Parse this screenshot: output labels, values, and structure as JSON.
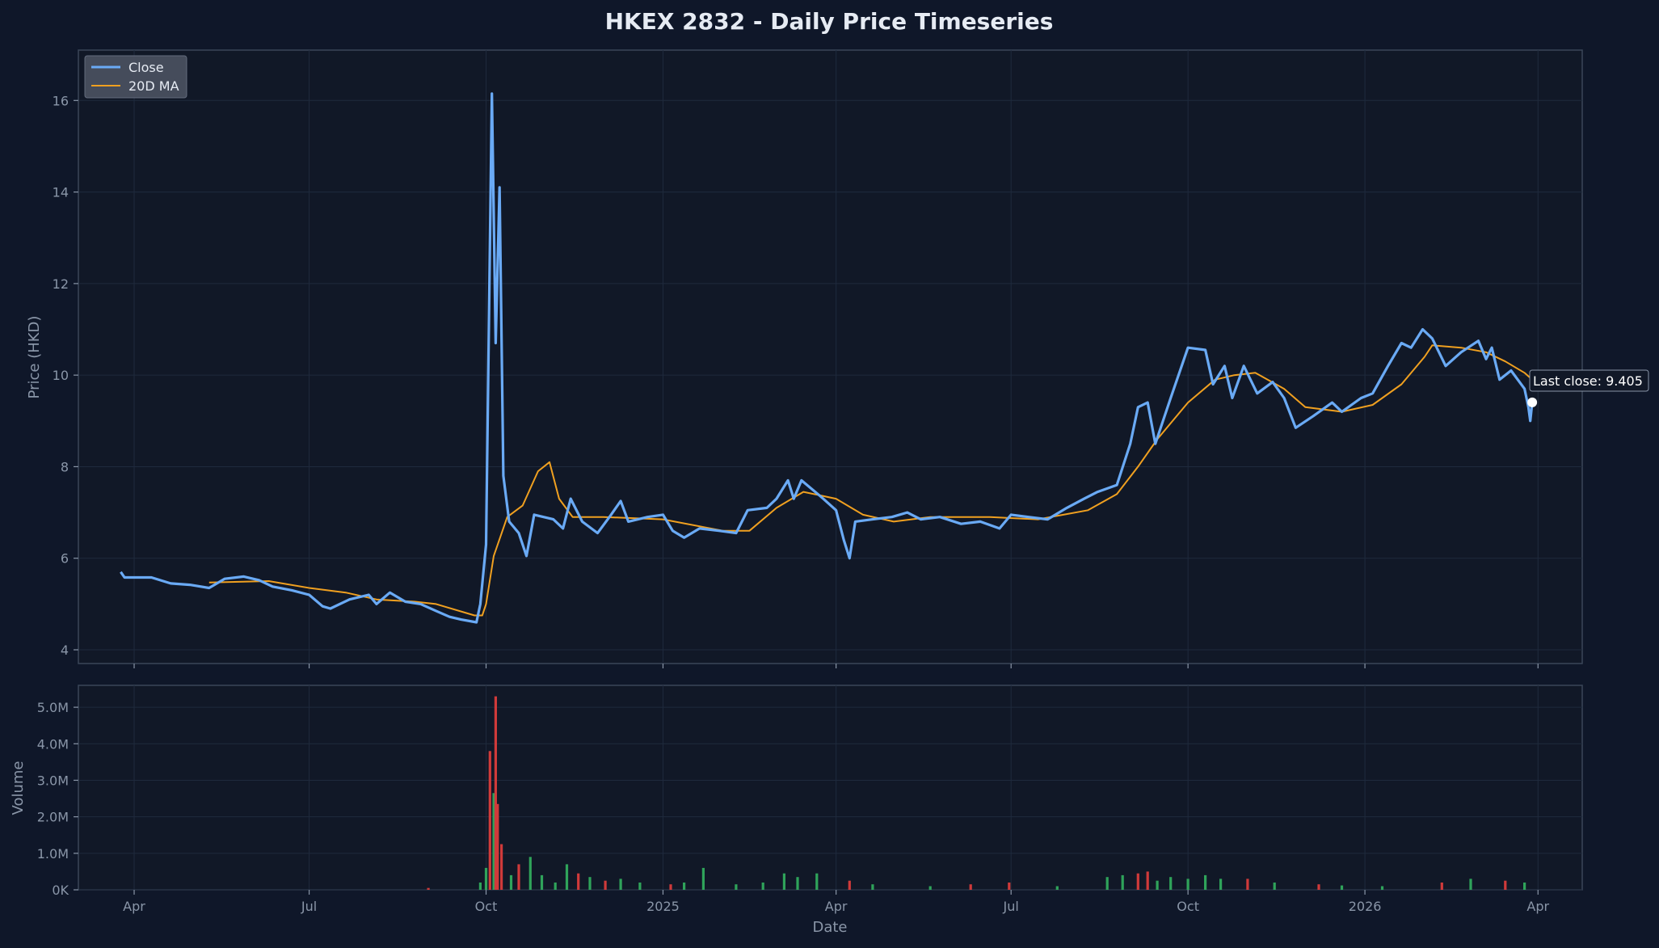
{
  "chart_data": {
    "type": "line",
    "title": "HKEX 2832 - Daily Price Timeseries",
    "xlabel": "Date",
    "ylabel": "Price (HKD)",
    "ylabel_volume": "Volume",
    "xlim": [
      "2024-03-03",
      "2026-04-24"
    ],
    "ylim": [
      3.7,
      17.1
    ],
    "volume_ylim": [
      0,
      5.6
    ],
    "volume_unit": "M",
    "grid": true,
    "legend_position": "top-left",
    "colors": {
      "close": "#6aaaf5",
      "ma": "#f0a020",
      "vol_up": "#2fa35a",
      "vol_down": "#d03a3a",
      "last_marker": "#ffffff"
    },
    "x_ticks": [
      {
        "date": "2024-04-01",
        "label": "Apr"
      },
      {
        "date": "2024-07-01",
        "label": "Jul"
      },
      {
        "date": "2024-10-01",
        "label": "Oct"
      },
      {
        "date": "2025-01-01",
        "label": "2025"
      },
      {
        "date": "2025-04-01",
        "label": "Apr"
      },
      {
        "date": "2025-07-01",
        "label": "Jul"
      },
      {
        "date": "2025-10-01",
        "label": "Oct"
      },
      {
        "date": "2026-01-01",
        "label": "2026"
      },
      {
        "date": "2026-04-01",
        "label": "Apr"
      }
    ],
    "y_ticks": [
      {
        "value": 4,
        "label": "4"
      },
      {
        "value": 6,
        "label": "6"
      },
      {
        "value": 8,
        "label": "8"
      },
      {
        "value": 10,
        "label": "10"
      },
      {
        "value": 12,
        "label": "12"
      },
      {
        "value": 14,
        "label": "14"
      },
      {
        "value": 16,
        "label": "16"
      }
    ],
    "volume_ticks": [
      {
        "value": 0,
        "label": "0K"
      },
      {
        "value": 1,
        "label": "1.0M"
      },
      {
        "value": 2,
        "label": "2.0M"
      },
      {
        "value": 3,
        "label": "3.0M"
      },
      {
        "value": 4,
        "label": "4.0M"
      },
      {
        "value": 5,
        "label": "5.0M"
      }
    ],
    "series": [
      {
        "name": "Close",
        "points": [
          [
            "2024-03-25",
            5.7
          ],
          [
            "2024-03-27",
            5.58
          ],
          [
            "2024-04-10",
            5.58
          ],
          [
            "2024-04-20",
            5.45
          ],
          [
            "2024-04-30",
            5.42
          ],
          [
            "2024-05-10",
            5.35
          ],
          [
            "2024-05-18",
            5.55
          ],
          [
            "2024-05-28",
            5.6
          ],
          [
            "2024-06-05",
            5.52
          ],
          [
            "2024-06-12",
            5.38
          ],
          [
            "2024-06-22",
            5.3
          ],
          [
            "2024-07-01",
            5.2
          ],
          [
            "2024-07-08",
            4.95
          ],
          [
            "2024-07-12",
            4.9
          ],
          [
            "2024-07-22",
            5.1
          ],
          [
            "2024-08-01",
            5.2
          ],
          [
            "2024-08-05",
            5.0
          ],
          [
            "2024-08-12",
            5.25
          ],
          [
            "2024-08-20",
            5.05
          ],
          [
            "2024-08-28",
            5.0
          ],
          [
            "2024-09-05",
            4.85
          ],
          [
            "2024-09-12",
            4.72
          ],
          [
            "2024-09-18",
            4.66
          ],
          [
            "2024-09-26",
            4.6
          ],
          [
            "2024-09-28",
            5.0
          ],
          [
            "2024-10-01",
            6.3
          ],
          [
            "2024-10-04",
            16.15
          ],
          [
            "2024-10-06",
            10.7
          ],
          [
            "2024-10-08",
            14.1
          ],
          [
            "2024-10-10",
            7.8
          ],
          [
            "2024-10-13",
            6.8
          ],
          [
            "2024-10-18",
            6.55
          ],
          [
            "2024-10-22",
            6.05
          ],
          [
            "2024-10-26",
            6.95
          ],
          [
            "2024-11-05",
            6.85
          ],
          [
            "2024-11-10",
            6.65
          ],
          [
            "2024-11-14",
            7.3
          ],
          [
            "2024-11-20",
            6.8
          ],
          [
            "2024-11-28",
            6.55
          ],
          [
            "2024-12-05",
            6.95
          ],
          [
            "2024-12-10",
            7.25
          ],
          [
            "2024-12-14",
            6.8
          ],
          [
            "2024-12-24",
            6.9
          ],
          [
            "2025-01-01",
            6.95
          ],
          [
            "2025-01-06",
            6.6
          ],
          [
            "2025-01-12",
            6.45
          ],
          [
            "2025-01-20",
            6.65
          ],
          [
            "2025-01-30",
            6.6
          ],
          [
            "2025-02-08",
            6.55
          ],
          [
            "2025-02-14",
            7.05
          ],
          [
            "2025-02-24",
            7.1
          ],
          [
            "2025-03-01",
            7.3
          ],
          [
            "2025-03-07",
            7.7
          ],
          [
            "2025-03-10",
            7.3
          ],
          [
            "2025-03-14",
            7.7
          ],
          [
            "2025-03-24",
            7.35
          ],
          [
            "2025-04-01",
            7.05
          ],
          [
            "2025-04-05",
            6.4
          ],
          [
            "2025-04-08",
            6.0
          ],
          [
            "2025-04-11",
            6.8
          ],
          [
            "2025-04-20",
            6.85
          ],
          [
            "2025-04-30",
            6.9
          ],
          [
            "2025-05-08",
            7.0
          ],
          [
            "2025-05-15",
            6.85
          ],
          [
            "2025-05-25",
            6.9
          ],
          [
            "2025-06-05",
            6.75
          ],
          [
            "2025-06-15",
            6.8
          ],
          [
            "2025-06-25",
            6.65
          ],
          [
            "2025-07-01",
            6.95
          ],
          [
            "2025-07-10",
            6.9
          ],
          [
            "2025-07-20",
            6.85
          ],
          [
            "2025-07-30",
            7.1
          ],
          [
            "2025-08-08",
            7.3
          ],
          [
            "2025-08-15",
            7.45
          ],
          [
            "2025-08-25",
            7.6
          ],
          [
            "2025-09-01",
            8.5
          ],
          [
            "2025-09-05",
            9.3
          ],
          [
            "2025-09-10",
            9.4
          ],
          [
            "2025-09-14",
            8.5
          ],
          [
            "2025-09-18",
            9.0
          ],
          [
            "2025-09-22",
            9.5
          ],
          [
            "2025-10-01",
            10.6
          ],
          [
            "2025-10-10",
            10.55
          ],
          [
            "2025-10-14",
            9.8
          ],
          [
            "2025-10-20",
            10.2
          ],
          [
            "2025-10-24",
            9.5
          ],
          [
            "2025-10-30",
            10.2
          ],
          [
            "2025-11-06",
            9.6
          ],
          [
            "2025-11-14",
            9.85
          ],
          [
            "2025-11-20",
            9.5
          ],
          [
            "2025-11-26",
            8.85
          ],
          [
            "2025-12-05",
            9.1
          ],
          [
            "2025-12-15",
            9.4
          ],
          [
            "2025-12-20",
            9.2
          ],
          [
            "2025-12-30",
            9.5
          ],
          [
            "2026-01-05",
            9.6
          ],
          [
            "2026-01-13",
            10.2
          ],
          [
            "2026-01-20",
            10.7
          ],
          [
            "2026-01-25",
            10.6
          ],
          [
            "2026-01-31",
            11.0
          ],
          [
            "2026-02-05",
            10.8
          ],
          [
            "2026-02-12",
            10.2
          ],
          [
            "2026-02-20",
            10.5
          ],
          [
            "2026-03-01",
            10.75
          ],
          [
            "2026-03-05",
            10.35
          ],
          [
            "2026-03-08",
            10.6
          ],
          [
            "2026-03-12",
            9.9
          ],
          [
            "2026-03-18",
            10.1
          ],
          [
            "2026-03-25",
            9.7
          ],
          [
            "2026-03-27",
            9.3
          ],
          [
            "2026-03-28",
            9.0
          ],
          [
            "2026-03-29",
            9.405
          ]
        ]
      },
      {
        "name": "20D MA",
        "points": [
          [
            "2024-05-10",
            5.47
          ],
          [
            "2024-06-10",
            5.5
          ],
          [
            "2024-07-01",
            5.35
          ],
          [
            "2024-07-20",
            5.25
          ],
          [
            "2024-08-05",
            5.1
          ],
          [
            "2024-08-25",
            5.05
          ],
          [
            "2024-09-05",
            5.0
          ],
          [
            "2024-09-25",
            4.75
          ],
          [
            "2024-09-29",
            4.75
          ],
          [
            "2024-10-01",
            5.0
          ],
          [
            "2024-10-05",
            6.05
          ],
          [
            "2024-10-12",
            6.9
          ],
          [
            "2024-10-20",
            7.15
          ],
          [
            "2024-10-28",
            7.9
          ],
          [
            "2024-11-03",
            8.1
          ],
          [
            "2024-11-08",
            7.3
          ],
          [
            "2024-11-15",
            6.9
          ],
          [
            "2024-12-01",
            6.9
          ],
          [
            "2025-01-01",
            6.85
          ],
          [
            "2025-02-01",
            6.6
          ],
          [
            "2025-02-15",
            6.6
          ],
          [
            "2025-03-01",
            7.1
          ],
          [
            "2025-03-15",
            7.45
          ],
          [
            "2025-04-01",
            7.3
          ],
          [
            "2025-04-15",
            6.95
          ],
          [
            "2025-05-01",
            6.8
          ],
          [
            "2025-05-20",
            6.9
          ],
          [
            "2025-06-20",
            6.9
          ],
          [
            "2025-07-15",
            6.85
          ],
          [
            "2025-08-10",
            7.05
          ],
          [
            "2025-08-25",
            7.4
          ],
          [
            "2025-09-05",
            8.0
          ],
          [
            "2025-09-15",
            8.6
          ],
          [
            "2025-10-01",
            9.4
          ],
          [
            "2025-10-15",
            9.9
          ],
          [
            "2025-10-25",
            10.0
          ],
          [
            "2025-11-05",
            10.05
          ],
          [
            "2025-11-20",
            9.7
          ],
          [
            "2025-12-01",
            9.3
          ],
          [
            "2025-12-20",
            9.2
          ],
          [
            "2026-01-05",
            9.35
          ],
          [
            "2026-01-20",
            9.8
          ],
          [
            "2026-02-01",
            10.4
          ],
          [
            "2026-02-05",
            10.65
          ],
          [
            "2026-02-20",
            10.6
          ],
          [
            "2026-03-05",
            10.5
          ],
          [
            "2026-03-15",
            10.3
          ],
          [
            "2026-03-25",
            10.05
          ],
          [
            "2026-03-29",
            9.9
          ]
        ]
      }
    ],
    "volume_bars": [
      [
        "2024-09-01",
        0.05,
        "down"
      ],
      [
        "2024-09-28",
        0.2,
        "up"
      ],
      [
        "2024-10-01",
        0.6,
        "up"
      ],
      [
        "2024-10-03",
        3.8,
        "down"
      ],
      [
        "2024-10-05",
        2.65,
        "up"
      ],
      [
        "2024-10-06",
        5.3,
        "down"
      ],
      [
        "2024-10-07",
        2.35,
        "down"
      ],
      [
        "2024-10-09",
        1.25,
        "down"
      ],
      [
        "2024-10-14",
        0.4,
        "up"
      ],
      [
        "2024-10-18",
        0.7,
        "down"
      ],
      [
        "2024-10-24",
        0.9,
        "up"
      ],
      [
        "2024-10-30",
        0.4,
        "up"
      ],
      [
        "2024-11-06",
        0.2,
        "up"
      ],
      [
        "2024-11-12",
        0.7,
        "up"
      ],
      [
        "2024-11-18",
        0.45,
        "down"
      ],
      [
        "2024-11-24",
        0.35,
        "up"
      ],
      [
        "2024-12-02",
        0.25,
        "down"
      ],
      [
        "2024-12-10",
        0.3,
        "up"
      ],
      [
        "2024-12-20",
        0.2,
        "up"
      ],
      [
        "2025-01-05",
        0.15,
        "down"
      ],
      [
        "2025-01-12",
        0.2,
        "up"
      ],
      [
        "2025-01-22",
        0.6,
        "up"
      ],
      [
        "2025-02-08",
        0.15,
        "up"
      ],
      [
        "2025-02-22",
        0.2,
        "up"
      ],
      [
        "2025-03-05",
        0.45,
        "up"
      ],
      [
        "2025-03-12",
        0.35,
        "up"
      ],
      [
        "2025-03-22",
        0.45,
        "up"
      ],
      [
        "2025-04-08",
        0.25,
        "down"
      ],
      [
        "2025-04-20",
        0.15,
        "up"
      ],
      [
        "2025-05-20",
        0.1,
        "up"
      ],
      [
        "2025-06-10",
        0.15,
        "down"
      ],
      [
        "2025-06-30",
        0.2,
        "down"
      ],
      [
        "2025-07-25",
        0.1,
        "up"
      ],
      [
        "2025-08-20",
        0.35,
        "up"
      ],
      [
        "2025-08-28",
        0.4,
        "up"
      ],
      [
        "2025-09-05",
        0.45,
        "down"
      ],
      [
        "2025-09-10",
        0.5,
        "down"
      ],
      [
        "2025-09-15",
        0.25,
        "up"
      ],
      [
        "2025-09-22",
        0.35,
        "up"
      ],
      [
        "2025-10-01",
        0.3,
        "up"
      ],
      [
        "2025-10-10",
        0.4,
        "up"
      ],
      [
        "2025-10-18",
        0.3,
        "up"
      ],
      [
        "2025-11-01",
        0.3,
        "down"
      ],
      [
        "2025-11-15",
        0.2,
        "up"
      ],
      [
        "2025-12-08",
        0.15,
        "down"
      ],
      [
        "2025-12-20",
        0.12,
        "up"
      ],
      [
        "2026-01-10",
        0.1,
        "up"
      ],
      [
        "2026-02-10",
        0.2,
        "down"
      ],
      [
        "2026-02-25",
        0.3,
        "up"
      ],
      [
        "2026-03-15",
        0.25,
        "down"
      ],
      [
        "2026-03-25",
        0.2,
        "up"
      ]
    ],
    "last_close_annotation": "Last close: 9.405"
  }
}
